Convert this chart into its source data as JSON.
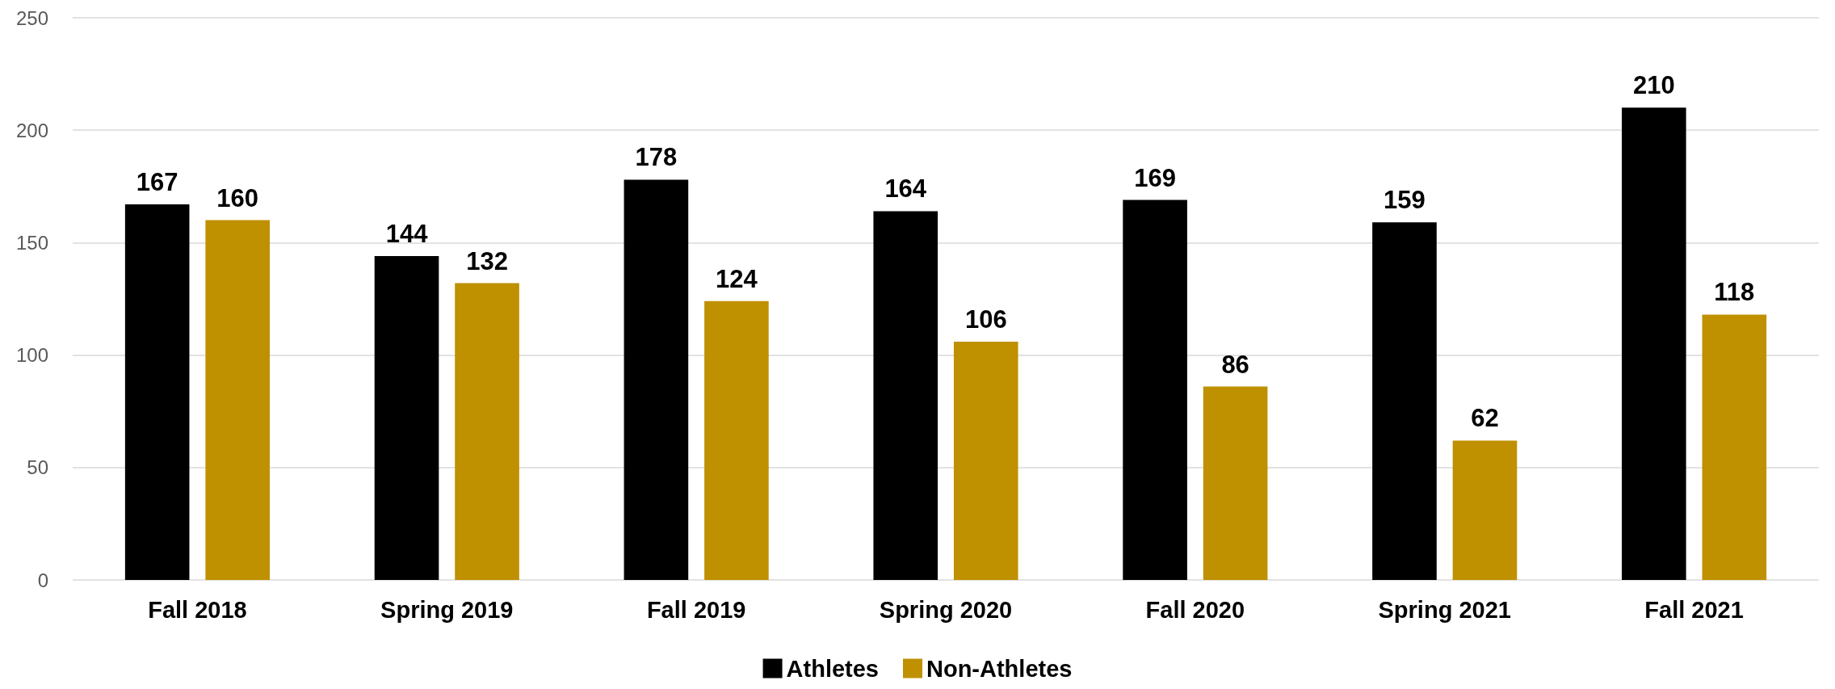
{
  "chart_data": {
    "type": "bar",
    "categories": [
      "Fall 2018",
      "Spring 2019",
      "Fall 2019",
      "Spring 2020",
      "Fall 2020",
      "Spring 2021",
      "Fall 2021"
    ],
    "series": [
      {
        "name": "Athletes",
        "color": "#000000",
        "values": [
          167,
          144,
          178,
          164,
          169,
          159,
          210
        ]
      },
      {
        "name": "Non-Athletes",
        "color": "#bf9000",
        "values": [
          160,
          132,
          124,
          106,
          86,
          62,
          118
        ]
      }
    ],
    "ylim": [
      0,
      250
    ],
    "yticks": [
      0,
      50,
      100,
      150,
      200,
      250
    ],
    "grid": "y",
    "legend": "bottom",
    "data_labels": true
  }
}
